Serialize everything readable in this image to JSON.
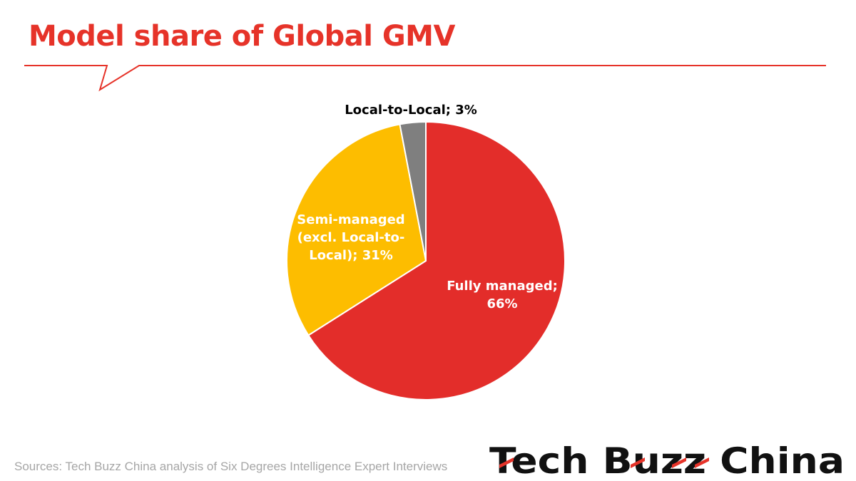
{
  "header": {
    "title": "Model share of Global GMV"
  },
  "chart_data": {
    "type": "pie",
    "title": "Model share of Global GMV",
    "slices": [
      {
        "label": "Fully managed;",
        "label_lines": [
          "Fully managed;",
          "66%"
        ],
        "value": 66,
        "color": "#e32d2a",
        "label_color": "#ffffff"
      },
      {
        "label": "Semi-managed (excl. Local-to-Local);",
        "label_lines": [
          "Semi-managed",
          "(excl. Local-to-",
          "Local); 31%"
        ],
        "value": 31,
        "color": "#fdbd00",
        "label_color": "#ffffff"
      },
      {
        "label": "Local-to-Local;",
        "label_lines": [
          "Local-to-Local; 3%"
        ],
        "value": 3,
        "color": "#7f7f7f",
        "label_color": "#000000"
      }
    ],
    "start_angle_deg": 0,
    "direction": "clockwise"
  },
  "footer": {
    "source": "Sources: Tech Buzz China analysis of Six Degrees Intelligence Expert Interviews"
  },
  "logo": {
    "text": "Tech Buzz China",
    "accent_color": "#e63329"
  },
  "colors": {
    "accent": "#e63329"
  }
}
